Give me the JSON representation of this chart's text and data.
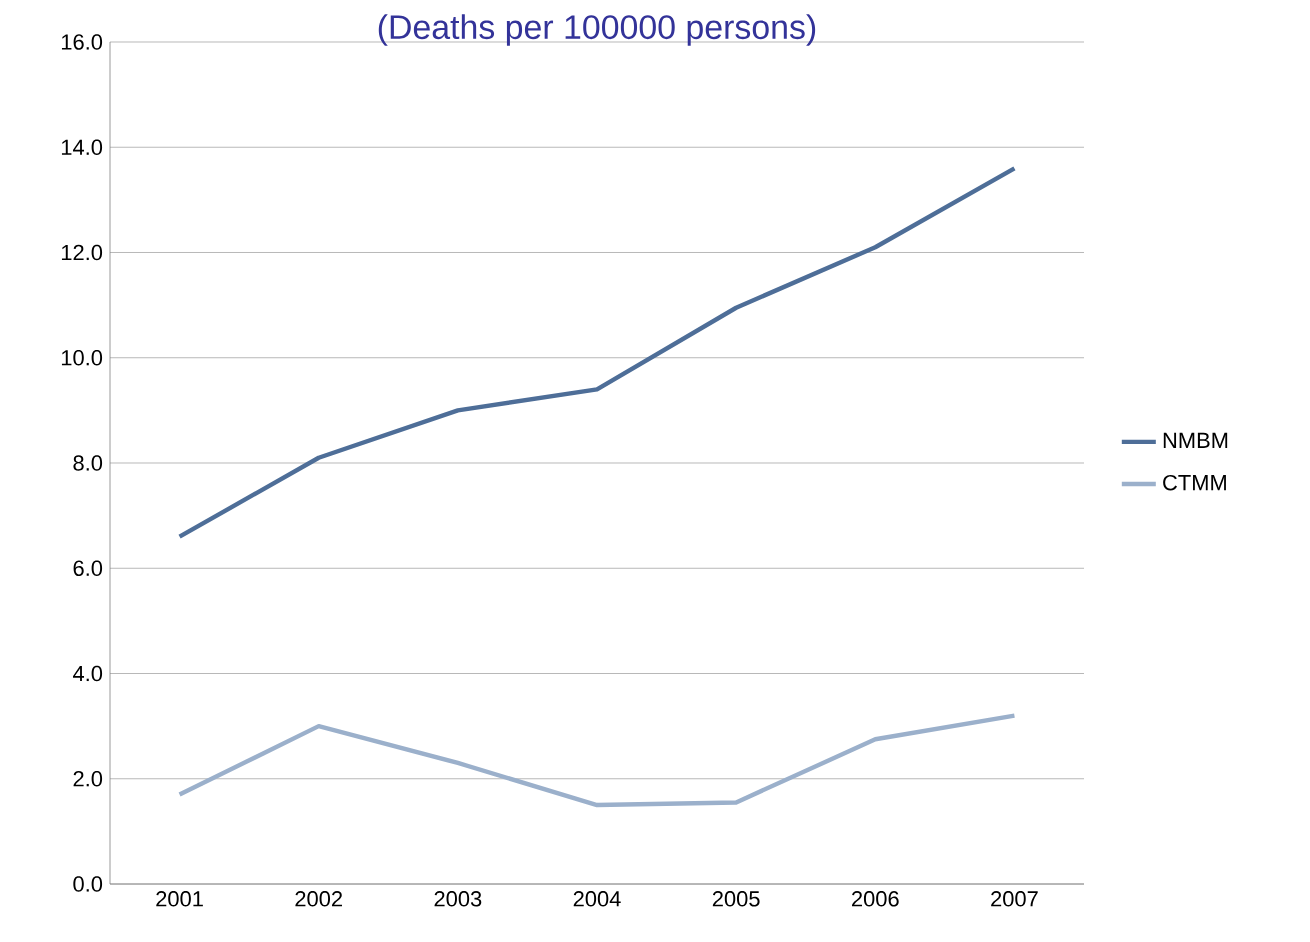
{
  "chart_data": {
    "type": "line",
    "title": "(Deaths per 100000 persons)",
    "categories": [
      "2001",
      "2002",
      "2003",
      "2004",
      "2005",
      "2006",
      "2007"
    ],
    "series": [
      {
        "name": "NMBM",
        "color": "#4e6e98",
        "values": [
          6.6,
          8.1,
          9.0,
          9.4,
          10.95,
          12.1,
          13.6
        ]
      },
      {
        "name": "CTMM",
        "color": "#9bb0cb",
        "values": [
          1.7,
          3.0,
          2.3,
          1.5,
          1.55,
          2.75,
          3.2
        ]
      }
    ],
    "ylim": [
      0,
      16
    ],
    "yticks": [
      {
        "value": 0,
        "label": "0.0"
      },
      {
        "value": 2,
        "label": "2.0"
      },
      {
        "value": 4,
        "label": "4.0"
      },
      {
        "value": 6,
        "label": "6.0"
      },
      {
        "value": 8,
        "label": "8.0"
      },
      {
        "value": 10,
        "label": "10.0"
      },
      {
        "value": 12,
        "label": "12.0"
      },
      {
        "value": 14,
        "label": "14.0"
      },
      {
        "value": 16,
        "label": "16.0"
      }
    ],
    "grid": "y",
    "legend": "right",
    "marker": "none",
    "line_style": "solid"
  }
}
